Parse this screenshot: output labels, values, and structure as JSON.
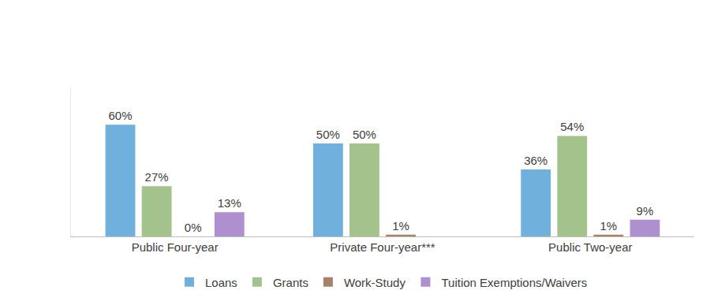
{
  "chart_data": {
    "type": "bar",
    "categories": [
      "Public Four-year",
      "Private Four-year***",
      "Public Two-year"
    ],
    "series": [
      {
        "name": "Loans",
        "color": "#6fb0dd",
        "values": [
          60,
          50,
          36
        ],
        "value_labels": [
          "60%",
          "50%",
          "36%"
        ]
      },
      {
        "name": "Grants",
        "color": "#a3c28c",
        "values": [
          27,
          50,
          54
        ],
        "value_labels": [
          "27%",
          "50%",
          "54%"
        ]
      },
      {
        "name": "Work-Study",
        "color": "#a88268",
        "values": [
          0,
          1,
          1
        ],
        "value_labels": [
          "0%",
          "1%",
          "1%"
        ]
      },
      {
        "name": "Tuition Exemptions/Waivers",
        "color": "#ae8fcf",
        "values": [
          13,
          null,
          9
        ],
        "value_labels": [
          "13%",
          null,
          "9%"
        ]
      }
    ],
    "ylim": [
      0,
      80
    ],
    "grid": false,
    "data_labels": true,
    "tick_labels": "x",
    "legend": "bottom"
  }
}
